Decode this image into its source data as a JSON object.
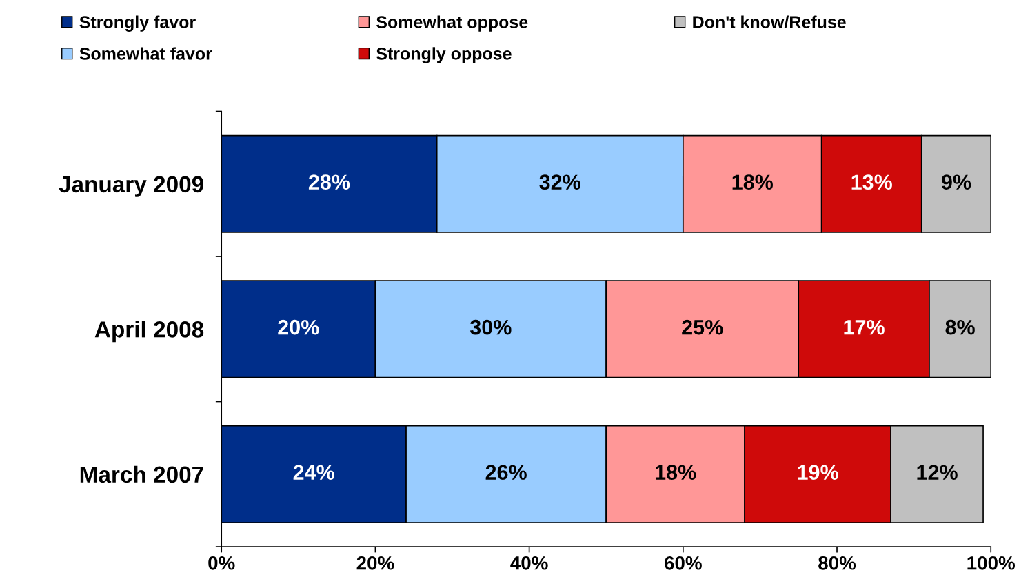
{
  "chart_data": {
    "type": "bar",
    "orientation": "horizontal",
    "stacked": true,
    "categories": [
      "January 2009",
      "April 2008",
      "March 2007"
    ],
    "series": [
      {
        "name": "Strongly favor",
        "color": "#002e8a",
        "values": [
          28,
          20,
          24
        ],
        "value_labels": [
          "28%",
          "20%",
          "24%"
        ]
      },
      {
        "name": "Somewhat favor",
        "color": "#99ccff",
        "values": [
          32,
          30,
          26
        ],
        "value_labels": [
          "32%",
          "30%",
          "26%"
        ]
      },
      {
        "name": "Somewhat oppose",
        "color": "#ff9797",
        "values": [
          18,
          25,
          18
        ],
        "value_labels": [
          "18%",
          "25%",
          "18%"
        ]
      },
      {
        "name": "Strongly oppose",
        "color": "#cf0a0a",
        "values": [
          13,
          17,
          19
        ],
        "value_labels": [
          "13%",
          "17%",
          "19%"
        ]
      },
      {
        "name": "Don't know/Refuse",
        "color": "#c0c0c0",
        "values": [
          9,
          8,
          12
        ],
        "value_labels": [
          "9%",
          "8%",
          "12%"
        ]
      }
    ],
    "xlim": [
      0,
      100
    ],
    "xticks": [
      {
        "value": 0,
        "label": "0%"
      },
      {
        "value": 20,
        "label": "20%"
      },
      {
        "value": 40,
        "label": "40%"
      },
      {
        "value": 60,
        "label": "60%"
      },
      {
        "value": 80,
        "label": "80%"
      },
      {
        "value": 100,
        "label": "100%"
      }
    ],
    "grid": false,
    "legend": "top"
  }
}
